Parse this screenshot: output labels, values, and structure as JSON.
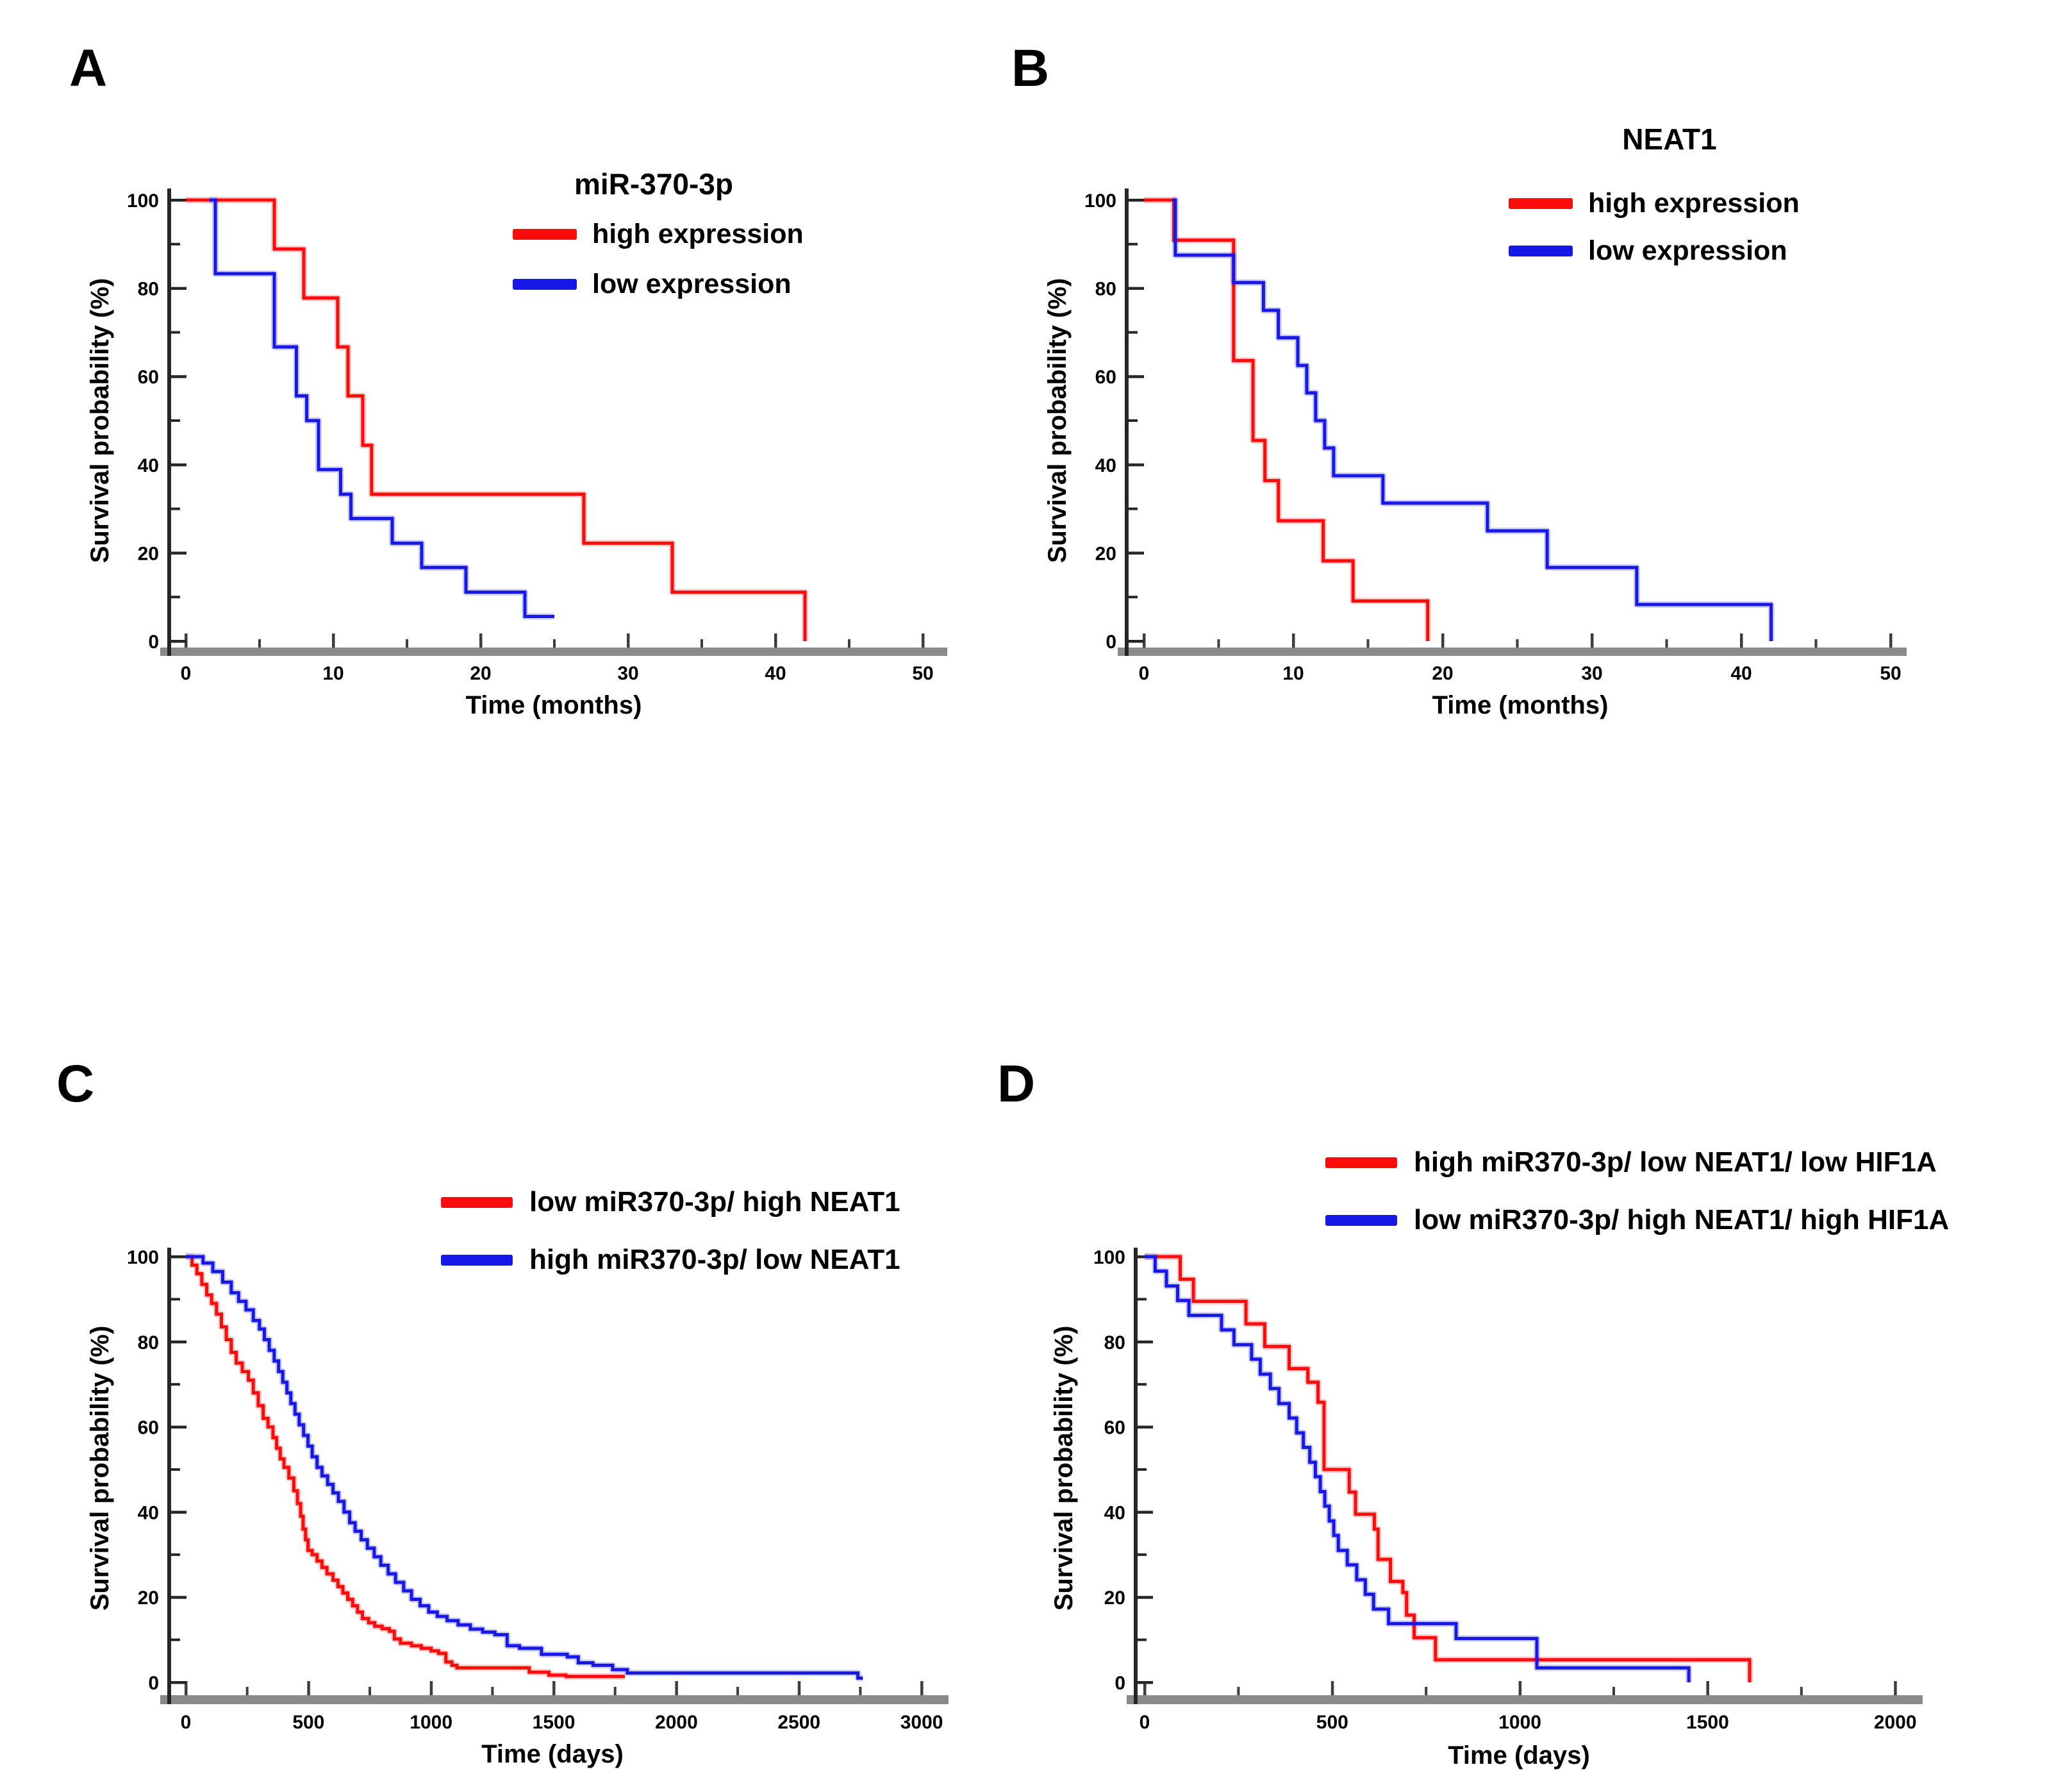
{
  "colors": {
    "red": "#fa0c0c",
    "blue": "#1717e6",
    "axis_y": "#262626",
    "axis_x": "#8a8a8a",
    "tick": "#3d3d3d",
    "text": "#000000",
    "background": "#ffffff"
  },
  "chart_data": [
    {
      "panel_label": "A",
      "type": "line",
      "subtype": "kaplan-meier-step",
      "title": "miR-370-3p",
      "xlabel": "Time (months)",
      "ylabel": "Survival probability (%)",
      "xlim": [
        0,
        50
      ],
      "ylim": [
        0,
        100
      ],
      "x_ticks": [
        0,
        10,
        20,
        30,
        40,
        50
      ],
      "x_minor_step": 5,
      "y_ticks": [
        0,
        20,
        40,
        60,
        80,
        100
      ],
      "y_minor_step": 10,
      "grid": false,
      "legend_position": "top-right",
      "series": [
        {
          "name": "high expression",
          "color_key": "red",
          "end_x": 42,
          "steps": [
            [
              0,
              100
            ],
            [
              6,
              88.9
            ],
            [
              8,
              77.8
            ],
            [
              10.3,
              66.7
            ],
            [
              11,
              55.6
            ],
            [
              12,
              44.4
            ],
            [
              12.6,
              33.3
            ],
            [
              27,
              22.2
            ],
            [
              33,
              11.1
            ],
            [
              42,
              0
            ]
          ]
        },
        {
          "name": "low expression",
          "color_key": "blue",
          "end_x": 25,
          "steps": [
            [
              1.6,
              100
            ],
            [
              2,
              83.3
            ],
            [
              6,
              66.7
            ],
            [
              7.5,
              55.6
            ],
            [
              8.2,
              50
            ],
            [
              9,
              38.9
            ],
            [
              10.5,
              33.3
            ],
            [
              11.2,
              27.8
            ],
            [
              14,
              22.2
            ],
            [
              16,
              16.7
            ],
            [
              19,
              11.1
            ],
            [
              23,
              5.6
            ]
          ]
        }
      ]
    },
    {
      "panel_label": "B",
      "type": "line",
      "subtype": "kaplan-meier-step",
      "title": "NEAT1",
      "xlabel": "Time (months)",
      "ylabel": "Survival probability (%)",
      "xlim": [
        0,
        50
      ],
      "ylim": [
        0,
        100
      ],
      "x_ticks": [
        0,
        10,
        20,
        30,
        40,
        50
      ],
      "x_minor_step": 5,
      "y_ticks": [
        0,
        20,
        40,
        60,
        80,
        100
      ],
      "y_minor_step": 10,
      "grid": false,
      "legend_position": "top-right",
      "series": [
        {
          "name": "high expression",
          "color_key": "red",
          "end_x": 19,
          "steps": [
            [
              0,
              100
            ],
            [
              2,
              90.9
            ],
            [
              6,
              63.6
            ],
            [
              7.3,
              45.5
            ],
            [
              8.1,
              36.4
            ],
            [
              9,
              27.3
            ],
            [
              12,
              18.2
            ],
            [
              14,
              9.1
            ],
            [
              19,
              0
            ]
          ]
        },
        {
          "name": "low expression",
          "color_key": "blue",
          "end_x": 42,
          "steps": [
            [
              1.9,
              100
            ],
            [
              2.1,
              87.5
            ],
            [
              6,
              81.3
            ],
            [
              8,
              75
            ],
            [
              9,
              68.8
            ],
            [
              10.3,
              62.5
            ],
            [
              10.9,
              56.3
            ],
            [
              11.5,
              50
            ],
            [
              12.1,
              43.8
            ],
            [
              12.7,
              37.5
            ],
            [
              16,
              31.3
            ],
            [
              23,
              25
            ],
            [
              27,
              16.7
            ],
            [
              33,
              8.3
            ],
            [
              42,
              0
            ]
          ]
        }
      ]
    },
    {
      "panel_label": "C",
      "type": "line",
      "subtype": "kaplan-meier-step",
      "title": null,
      "xlabel": "Time (days)",
      "ylabel": "Survival probability (%)",
      "xlim": [
        0,
        3000
      ],
      "ylim": [
        0,
        100
      ],
      "x_ticks": [
        0,
        500,
        1000,
        1500,
        2000,
        2500,
        3000
      ],
      "x_minor_step": 250,
      "y_ticks": [
        0,
        20,
        40,
        60,
        80,
        100
      ],
      "y_minor_step": 10,
      "grid": false,
      "legend_position": "top-right",
      "series": [
        {
          "name": "low miR370-3p/ high NEAT1",
          "color_key": "red",
          "end_x": 1790,
          "steps": [
            [
              0,
              100
            ],
            [
              25,
              98
            ],
            [
              45,
              96
            ],
            [
              65,
              93.5
            ],
            [
              85,
              91
            ],
            [
              105,
              89
            ],
            [
              125,
              86.5
            ],
            [
              145,
              83.5
            ],
            [
              165,
              80.5
            ],
            [
              185,
              77.5
            ],
            [
              205,
              75
            ],
            [
              230,
              73
            ],
            [
              255,
              71
            ],
            [
              275,
              68
            ],
            [
              295,
              65
            ],
            [
              315,
              62
            ],
            [
              335,
              60
            ],
            [
              355,
              57.5
            ],
            [
              370,
              55
            ],
            [
              385,
              52.5
            ],
            [
              400,
              50.5
            ],
            [
              420,
              48
            ],
            [
              440,
              45
            ],
            [
              455,
              42
            ],
            [
              468,
              39
            ],
            [
              478,
              36
            ],
            [
              488,
              33.5
            ],
            [
              498,
              31
            ],
            [
              515,
              30
            ],
            [
              535,
              28.5
            ],
            [
              555,
              27
            ],
            [
              575,
              25.5
            ],
            [
              600,
              24
            ],
            [
              620,
              22.5
            ],
            [
              640,
              21
            ],
            [
              660,
              19.5
            ],
            [
              680,
              18
            ],
            [
              700,
              16.5
            ],
            [
              720,
              15
            ],
            [
              745,
              14
            ],
            [
              770,
              13.2
            ],
            [
              800,
              12.6
            ],
            [
              830,
              12
            ],
            [
              850,
              10.2
            ],
            [
              875,
              9.2
            ],
            [
              920,
              8.6
            ],
            [
              960,
              8
            ],
            [
              1000,
              7.4
            ],
            [
              1030,
              6.8
            ],
            [
              1060,
              4.8
            ],
            [
              1085,
              4
            ],
            [
              1105,
              3.4
            ],
            [
              1400,
              2.4
            ],
            [
              1480,
              1.7
            ],
            [
              1550,
              1.4
            ]
          ]
        },
        {
          "name": "high miR370-3p/ low NEAT1",
          "color_key": "blue",
          "end_x": 2760,
          "steps": [
            [
              0,
              100
            ],
            [
              70,
              98.5
            ],
            [
              110,
              96.5
            ],
            [
              150,
              94
            ],
            [
              185,
              91.5
            ],
            [
              215,
              89.5
            ],
            [
              245,
              87.5
            ],
            [
              275,
              85
            ],
            [
              300,
              83
            ],
            [
              320,
              80.5
            ],
            [
              340,
              78
            ],
            [
              360,
              75.5
            ],
            [
              378,
              73
            ],
            [
              395,
              70.5
            ],
            [
              412,
              68
            ],
            [
              428,
              65.5
            ],
            [
              445,
              63
            ],
            [
              462,
              60.5
            ],
            [
              480,
              58
            ],
            [
              498,
              55.5
            ],
            [
              515,
              53
            ],
            [
              535,
              50.5
            ],
            [
              555,
              48.5
            ],
            [
              578,
              46.5
            ],
            [
              600,
              44.5
            ],
            [
              622,
              42.5
            ],
            [
              645,
              40
            ],
            [
              668,
              37.5
            ],
            [
              690,
              35.5
            ],
            [
              715,
              33.5
            ],
            [
              740,
              31.5
            ],
            [
              768,
              29.5
            ],
            [
              795,
              27.5
            ],
            [
              825,
              25.5
            ],
            [
              855,
              23.5
            ],
            [
              888,
              21.5
            ],
            [
              920,
              19.5
            ],
            [
              955,
              18
            ],
            [
              990,
              16.5
            ],
            [
              1025,
              15.5
            ],
            [
              1065,
              14.5
            ],
            [
              1110,
              13.5
            ],
            [
              1160,
              12.5
            ],
            [
              1210,
              11.8
            ],
            [
              1260,
              11.2
            ],
            [
              1310,
              8.6
            ],
            [
              1360,
              8
            ],
            [
              1450,
              6.6
            ],
            [
              1555,
              6
            ],
            [
              1600,
              4.6
            ],
            [
              1660,
              4
            ],
            [
              1740,
              3
            ],
            [
              1800,
              2.2
            ],
            [
              2740,
              1
            ]
          ]
        }
      ]
    },
    {
      "panel_label": "D",
      "type": "line",
      "subtype": "kaplan-meier-step",
      "title": null,
      "xlabel": "Time (days)",
      "ylabel": "Survival probability (%)",
      "xlim": [
        0,
        2000
      ],
      "ylim": [
        0,
        100
      ],
      "x_ticks": [
        0,
        500,
        1000,
        1500,
        2000
      ],
      "x_minor_step": 250,
      "y_ticks": [
        0,
        20,
        40,
        60,
        80,
        100
      ],
      "y_minor_step": 10,
      "grid": false,
      "legend_position": "top-right",
      "series": [
        {
          "name": "high miR370-3p/ low NEAT1/ low HIF1A",
          "color_key": "red",
          "end_x": 1612,
          "steps": [
            [
              0,
              100
            ],
            [
              95,
              94.7
            ],
            [
              130,
              89.5
            ],
            [
              270,
              84.2
            ],
            [
              320,
              78.9
            ],
            [
              385,
              73.7
            ],
            [
              435,
              70.5
            ],
            [
              462,
              65.8
            ],
            [
              478,
              50
            ],
            [
              545,
              44.7
            ],
            [
              562,
              39.5
            ],
            [
              612,
              36
            ],
            [
              622,
              28.9
            ],
            [
              655,
              23.7
            ],
            [
              688,
              21.1
            ],
            [
              698,
              15.8
            ],
            [
              718,
              10.5
            ],
            [
              775,
              5.3
            ],
            [
              1612,
              0
            ]
          ]
        },
        {
          "name": "low miR370-3p/ high NEAT1/ high HIF1A",
          "color_key": "blue",
          "end_x": 1450,
          "steps": [
            [
              0,
              100
            ],
            [
              28,
              96.6
            ],
            [
              58,
              93.1
            ],
            [
              88,
              89.7
            ],
            [
              118,
              86.2
            ],
            [
              205,
              82.8
            ],
            [
              238,
              79.3
            ],
            [
              285,
              75.9
            ],
            [
              308,
              72.4
            ],
            [
              335,
              69
            ],
            [
              358,
              65.5
            ],
            [
              385,
              62.1
            ],
            [
              405,
              58.6
            ],
            [
              423,
              55.2
            ],
            [
              440,
              51.7
            ],
            [
              455,
              48.3
            ],
            [
              468,
              44.8
            ],
            [
              480,
              41.4
            ],
            [
              492,
              37.9
            ],
            [
              504,
              34.5
            ],
            [
              516,
              31
            ],
            [
              540,
              27.6
            ],
            [
              565,
              24.1
            ],
            [
              588,
              20.7
            ],
            [
              610,
              17.2
            ],
            [
              650,
              13.8
            ],
            [
              830,
              10.3
            ],
            [
              1045,
              3.4
            ],
            [
              1450,
              0
            ]
          ]
        }
      ]
    }
  ]
}
